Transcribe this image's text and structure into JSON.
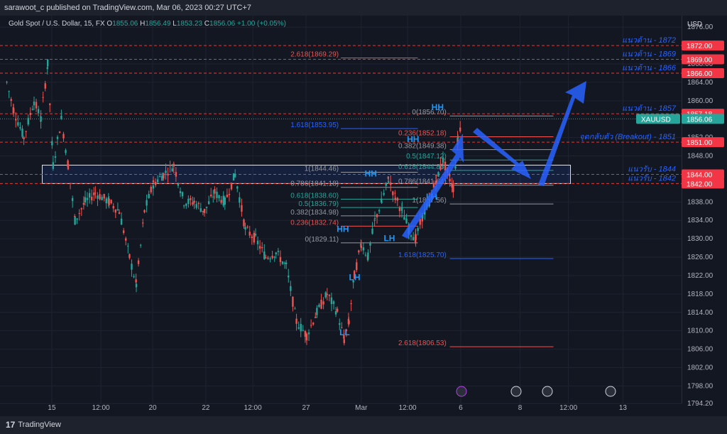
{
  "header": {
    "publisher": "sarawoot_c published on TradingView.com, Mar 06, 2023 00:27 UTC+7"
  },
  "symbol_bar": {
    "name": "Gold Spot / U.S. Dollar, 15, FX",
    "open_label": "O",
    "open": "1855.06",
    "high_label": "H",
    "high": "1856.49",
    "low_label": "L",
    "low": "1853.23",
    "close_label": "C",
    "close": "1856.06",
    "change": "+1.00 (+0.05%)"
  },
  "footer": {
    "brand": "TradingView"
  },
  "colors": {
    "background": "#131722",
    "bull": "#26a69a",
    "bear": "#ef5350",
    "resistance": "#e53935",
    "annotation_blue": "#2962ff",
    "fib_gray": "#9598a1",
    "price_tag": "#26a69a"
  },
  "chart_data": {
    "type": "candlestick",
    "title": "Gold Spot / U.S. Dollar, 15, FX",
    "ylabel": "USD",
    "ylim": [
      1794.2,
      1878.5
    ],
    "yticks": [
      1876.0,
      1868.0,
      1864.0,
      1860.0,
      1852.0,
      1848.0,
      1838.0,
      1834.0,
      1830.0,
      1826.0,
      1822.0,
      1818.0,
      1814.0,
      1810.0,
      1806.0,
      1802.0,
      1798.0,
      1794.2
    ],
    "x_ticks": [
      {
        "label": "15",
        "pos": 0.076
      },
      {
        "label": "12:00",
        "pos": 0.148
      },
      {
        "label": "20",
        "pos": 0.224
      },
      {
        "label": "22",
        "pos": 0.302
      },
      {
        "label": "12:00",
        "pos": 0.371
      },
      {
        "label": "27",
        "pos": 0.449
      },
      {
        "label": "Mar",
        "pos": 0.53
      },
      {
        "label": "12:00",
        "pos": 0.598
      },
      {
        "label": "6",
        "pos": 0.676
      },
      {
        "label": "8",
        "pos": 0.763
      },
      {
        "label": "12:00",
        "pos": 0.834
      },
      {
        "label": "13",
        "pos": 0.914
      }
    ],
    "price_path": [
      [
        0.01,
        1864
      ],
      [
        0.02,
        1858
      ],
      [
        0.035,
        1852
      ],
      [
        0.05,
        1860
      ],
      [
        0.06,
        1856
      ],
      [
        0.07,
        1868
      ],
      [
        0.078,
        1846
      ],
      [
        0.09,
        1856
      ],
      [
        0.1,
        1846
      ],
      [
        0.11,
        1834
      ],
      [
        0.125,
        1838
      ],
      [
        0.14,
        1840
      ],
      [
        0.16,
        1838
      ],
      [
        0.175,
        1836
      ],
      [
        0.19,
        1826
      ],
      [
        0.2,
        1820
      ],
      [
        0.212,
        1836
      ],
      [
        0.225,
        1842
      ],
      [
        0.24,
        1844
      ],
      [
        0.255,
        1846
      ],
      [
        0.27,
        1838
      ],
      [
        0.285,
        1838
      ],
      [
        0.3,
        1836
      ],
      [
        0.315,
        1840
      ],
      [
        0.33,
        1838
      ],
      [
        0.345,
        1844
      ],
      [
        0.36,
        1832
      ],
      [
        0.375,
        1830
      ],
      [
        0.39,
        1826
      ],
      [
        0.405,
        1827
      ],
      [
        0.42,
        1824
      ],
      [
        0.435,
        1812
      ],
      [
        0.45,
        1809
      ],
      [
        0.465,
        1814
      ],
      [
        0.48,
        1818
      ],
      [
        0.495,
        1814
      ],
      [
        0.505,
        1808
      ],
      [
        0.512,
        1812
      ],
      [
        0.52,
        1822
      ],
      [
        0.53,
        1829
      ],
      [
        0.54,
        1826
      ],
      [
        0.55,
        1834
      ],
      [
        0.56,
        1838
      ],
      [
        0.57,
        1843
      ],
      [
        0.58,
        1839
      ],
      [
        0.59,
        1836
      ],
      [
        0.6,
        1832
      ],
      [
        0.61,
        1830
      ],
      [
        0.62,
        1835
      ],
      [
        0.63,
        1838
      ],
      [
        0.64,
        1843
      ],
      [
        0.65,
        1847
      ],
      [
        0.66,
        1843
      ],
      [
        0.665,
        1841
      ],
      [
        0.672,
        1852
      ],
      [
        0.678,
        1856.06
      ]
    ],
    "levels": [
      {
        "label": "1872.00",
        "name": "แนวต้าน - 1872",
        "value": 1872.0,
        "kind": "resistance"
      },
      {
        "label": "1869.00",
        "name": "แนวต้าน - 1869",
        "value": 1869.0,
        "kind": "resistance"
      },
      {
        "label": "1866.00",
        "name": "แนวต้าน - 1866",
        "value": 1866.0,
        "kind": "resistance"
      },
      {
        "label": "1857.18",
        "name": "แนวต้าน - 1857",
        "value": 1857.18,
        "kind": "resistance"
      },
      {
        "label": "1851.00",
        "name": "จุดกลับตัว (Breakout) - 1851",
        "value": 1851.0,
        "kind": "resistance"
      },
      {
        "label": "1844.00",
        "name": "แนวรับ - 1844",
        "value": 1844.0,
        "kind": "support"
      },
      {
        "label": "1842.00",
        "name": "แนวรับ - 1842",
        "value": 1842.0,
        "kind": "support"
      }
    ],
    "current_price": {
      "label": "1856.06",
      "symbol": "XAUUSD",
      "value": 1856.06
    },
    "fib_upper": [
      {
        "label": "2.618(1869.29)",
        "value": 1869.29,
        "color": "#ef5350"
      },
      {
        "label": "1.618(1853.95)",
        "value": 1853.95,
        "color": "#2962ff"
      },
      {
        "label": "1(1844.46)",
        "value": 1844.46,
        "color": "#9598a1"
      },
      {
        "label": "0.786(1841.18)",
        "value": 1841.18,
        "color": "#9598a1"
      },
      {
        "label": "0.618(1838.60)",
        "value": 1838.6,
        "color": "#26a69a"
      },
      {
        "label": "0.5(1836.79)",
        "value": 1836.79,
        "color": "#26a69a"
      },
      {
        "label": "0.382(1834.98)",
        "value": 1834.98,
        "color": "#9598a1"
      },
      {
        "label": "0.236(1832.74)",
        "value": 1832.74,
        "color": "#ef5350"
      },
      {
        "label": "0(1829.11)",
        "value": 1829.11,
        "color": "#9598a1"
      }
    ],
    "fib_right": [
      {
        "label": "0(1856.70)",
        "value": 1856.7,
        "color": "#9598a1"
      },
      {
        "label": "0.236(1852.18)",
        "value": 1852.18,
        "color": "#ef5350"
      },
      {
        "label": "0.382(1849.38)",
        "value": 1849.38,
        "color": "#9598a1"
      },
      {
        "label": "0.5(1847.12)",
        "value": 1847.12,
        "color": "#26a69a"
      },
      {
        "label": "0.618(1844.86)",
        "value": 1844.86,
        "color": "#26a69a"
      },
      {
        "label": "0.786(1841.64)",
        "value": 1841.64,
        "color": "#9598a1"
      },
      {
        "label": "1(1837.56)",
        "value": 1837.56,
        "color": "#9598a1"
      },
      {
        "label": "1.618(1825.70)",
        "value": 1825.7,
        "color": "#2962ff"
      },
      {
        "label": "2.618(1806.53)",
        "value": 1806.53,
        "color": "#ef5350"
      }
    ],
    "swing_labels": [
      {
        "text": "HH",
        "x": 0.633,
        "y": 1858.0
      },
      {
        "text": "HH",
        "x": 0.597,
        "y": 1851.0
      },
      {
        "text": "HH",
        "x": 0.535,
        "y": 1843.5
      },
      {
        "text": "HH",
        "x": 0.494,
        "y": 1831.5
      },
      {
        "text": "LH",
        "x": 0.625,
        "y": 1838.5
      },
      {
        "text": "LH",
        "x": 0.563,
        "y": 1829.5
      },
      {
        "text": "LH",
        "x": 0.512,
        "y": 1821.0
      },
      {
        "text": "LL",
        "x": 0.498,
        "y": 1809.0
      }
    ],
    "zone": {
      "from": 1842.0,
      "to": 1846.0,
      "x0": 0.062,
      "x1": 0.837
    }
  }
}
